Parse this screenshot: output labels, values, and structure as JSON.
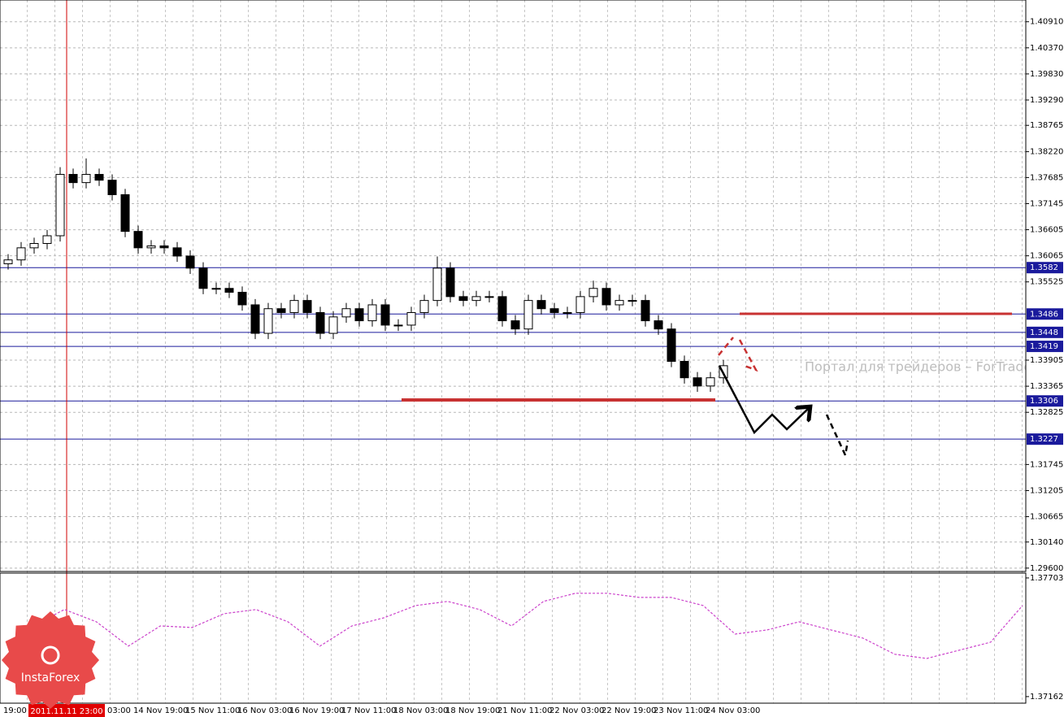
{
  "chart_data": [
    {
      "type": "candlestick",
      "color": "#000000",
      "up_color": "#ffffff",
      "grid": true,
      "cursor_label": "2011.11.11 23:00",
      "watermark": "Портал для трейдеров – ForTrade",
      "categories": [
        "19:00",
        null,
        null,
        null,
        null,
        null,
        null,
        null,
        "03:00",
        null,
        "14 Nov 19:00",
        null,
        null,
        null,
        "15 Nov 11:00",
        null,
        null,
        null,
        "16 Nov 03:00",
        null,
        null,
        null,
        "16 Nov 19:00",
        null,
        null,
        null,
        "17 Nov 11:00",
        null,
        null,
        null,
        "18 Nov 03:00",
        null,
        null,
        null,
        "18 Nov 19:00",
        null,
        null,
        null,
        "21 Nov 11:00",
        null,
        null,
        null,
        "22 Nov 03:00",
        null,
        null,
        null,
        "22 Nov 19:00",
        null,
        null,
        null,
        "23 Nov 11:00",
        null,
        null,
        null,
        "24 Nov 03:00",
        null
      ],
      "open": [
        1.359,
        1.3598,
        1.3623,
        1.3632,
        1.3648,
        1.3775,
        1.3758,
        1.3775,
        1.3763,
        1.3733,
        1.3657,
        1.3623,
        1.3627,
        1.3623,
        1.3606,
        1.3581,
        1.3539,
        1.3539,
        1.3531,
        1.3505,
        1.3446,
        1.3497,
        1.3489,
        1.3514,
        1.3489,
        1.3446,
        1.348,
        1.3497,
        1.3472,
        1.3505,
        1.3463,
        1.3463,
        1.3489,
        1.3514,
        1.3581,
        1.3522,
        1.3514,
        1.3522,
        1.3522,
        1.3472,
        1.3455,
        1.3514,
        1.3497,
        1.3489,
        1.3489,
        1.3522,
        1.3539,
        1.3505,
        1.3514,
        1.3514,
        1.3472,
        1.3455,
        1.3388,
        1.3354,
        1.3337,
        1.3354
      ],
      "high": [
        1.361,
        1.3635,
        1.3644,
        1.366,
        1.379,
        1.3787,
        1.3808,
        1.3787,
        1.3775,
        1.3745,
        1.3669,
        1.3639,
        1.3639,
        1.3635,
        1.3618,
        1.3593,
        1.3551,
        1.3551,
        1.3543,
        1.3517,
        1.3509,
        1.3509,
        1.3526,
        1.3526,
        1.3501,
        1.3492,
        1.3509,
        1.3509,
        1.3517,
        1.3517,
        1.3475,
        1.3501,
        1.3526,
        1.3605,
        1.3593,
        1.3534,
        1.3534,
        1.3534,
        1.3534,
        1.3484,
        1.3526,
        1.3526,
        1.3509,
        1.3501,
        1.3534,
        1.3555,
        1.3551,
        1.3526,
        1.3526,
        1.3526,
        1.3484,
        1.3467,
        1.34,
        1.3366,
        1.3366,
        1.3391
      ],
      "low": [
        1.3578,
        1.3586,
        1.3611,
        1.362,
        1.3636,
        1.3746,
        1.3746,
        1.3751,
        1.3721,
        1.3645,
        1.3611,
        1.3611,
        1.3611,
        1.3594,
        1.3569,
        1.3527,
        1.3527,
        1.3519,
        1.3493,
        1.3434,
        1.3434,
        1.3477,
        1.3477,
        1.3477,
        1.3434,
        1.3434,
        1.3468,
        1.346,
        1.346,
        1.3451,
        1.3451,
        1.3451,
        1.3477,
        1.3502,
        1.351,
        1.3502,
        1.3502,
        1.351,
        1.346,
        1.3443,
        1.3443,
        1.3485,
        1.3477,
        1.3477,
        1.3477,
        1.351,
        1.3493,
        1.3493,
        1.3502,
        1.346,
        1.3443,
        1.3376,
        1.3342,
        1.3325,
        1.3325,
        1.3342
      ],
      "close": [
        1.3598,
        1.3623,
        1.3632,
        1.3648,
        1.3775,
        1.3758,
        1.3775,
        1.3763,
        1.3733,
        1.3657,
        1.3623,
        1.3627,
        1.3623,
        1.3606,
        1.3581,
        1.3539,
        1.3539,
        1.3531,
        1.3505,
        1.3446,
        1.3497,
        1.3489,
        1.3514,
        1.3489,
        1.3446,
        1.348,
        1.3497,
        1.3472,
        1.3505,
        1.3463,
        1.3463,
        1.3489,
        1.3514,
        1.3581,
        1.3522,
        1.3514,
        1.3522,
        1.3522,
        1.3472,
        1.3455,
        1.3514,
        1.3497,
        1.3489,
        1.3489,
        1.3522,
        1.3539,
        1.3505,
        1.3514,
        1.3514,
        1.3472,
        1.3455,
        1.3388,
        1.3354,
        1.3337,
        1.3354,
        1.3379
      ],
      "ylim": [
        1.2953,
        1.4136
      ],
      "yticks": [
        {
          "value": 1.4091,
          "label": "1.40910"
        },
        {
          "value": 1.4037,
          "label": "1.40370"
        },
        {
          "value": 1.3983,
          "label": "1.39830"
        },
        {
          "value": 1.3929,
          "label": "1.39290"
        },
        1.38765,
        {
          "value": 1.3822,
          "label": "1.38220"
        },
        1.37685,
        1.37145,
        1.36605,
        1.36065,
        1.35525,
        1.33905,
        1.33365,
        1.32825,
        1.31745,
        1.31205,
        1.30665,
        {
          "value": 1.3014,
          "label": "1.30140"
        },
        {
          "value": 1.296,
          "label": "1.29600"
        }
      ],
      "levels": [
        1.3582,
        1.3486,
        1.3448,
        1.3419,
        1.3306,
        1.3227
      ],
      "level_color": "#1a1a9c"
    },
    {
      "type": "line",
      "color": "#cc44cc",
      "values": [
        1.37484,
        1.37559,
        1.37503,
        1.37392,
        1.37484,
        1.37477,
        1.3754,
        1.37559,
        1.37503,
        1.37392,
        1.37484,
        1.37521,
        1.37577,
        1.37596,
        1.37559,
        1.37484,
        1.37596,
        1.37633,
        1.37633,
        1.37614,
        1.37614,
        1.37577,
        1.37447,
        1.37466,
        1.37503,
        1.37466,
        1.37429,
        1.37355,
        1.37336,
        1.37373,
        1.3741,
        1.37577
      ],
      "ylim": [
        1.37132,
        1.37725
      ],
      "yticks": [
        1.37703,
        1.37162
      ]
    }
  ],
  "logo": "InstaForex"
}
